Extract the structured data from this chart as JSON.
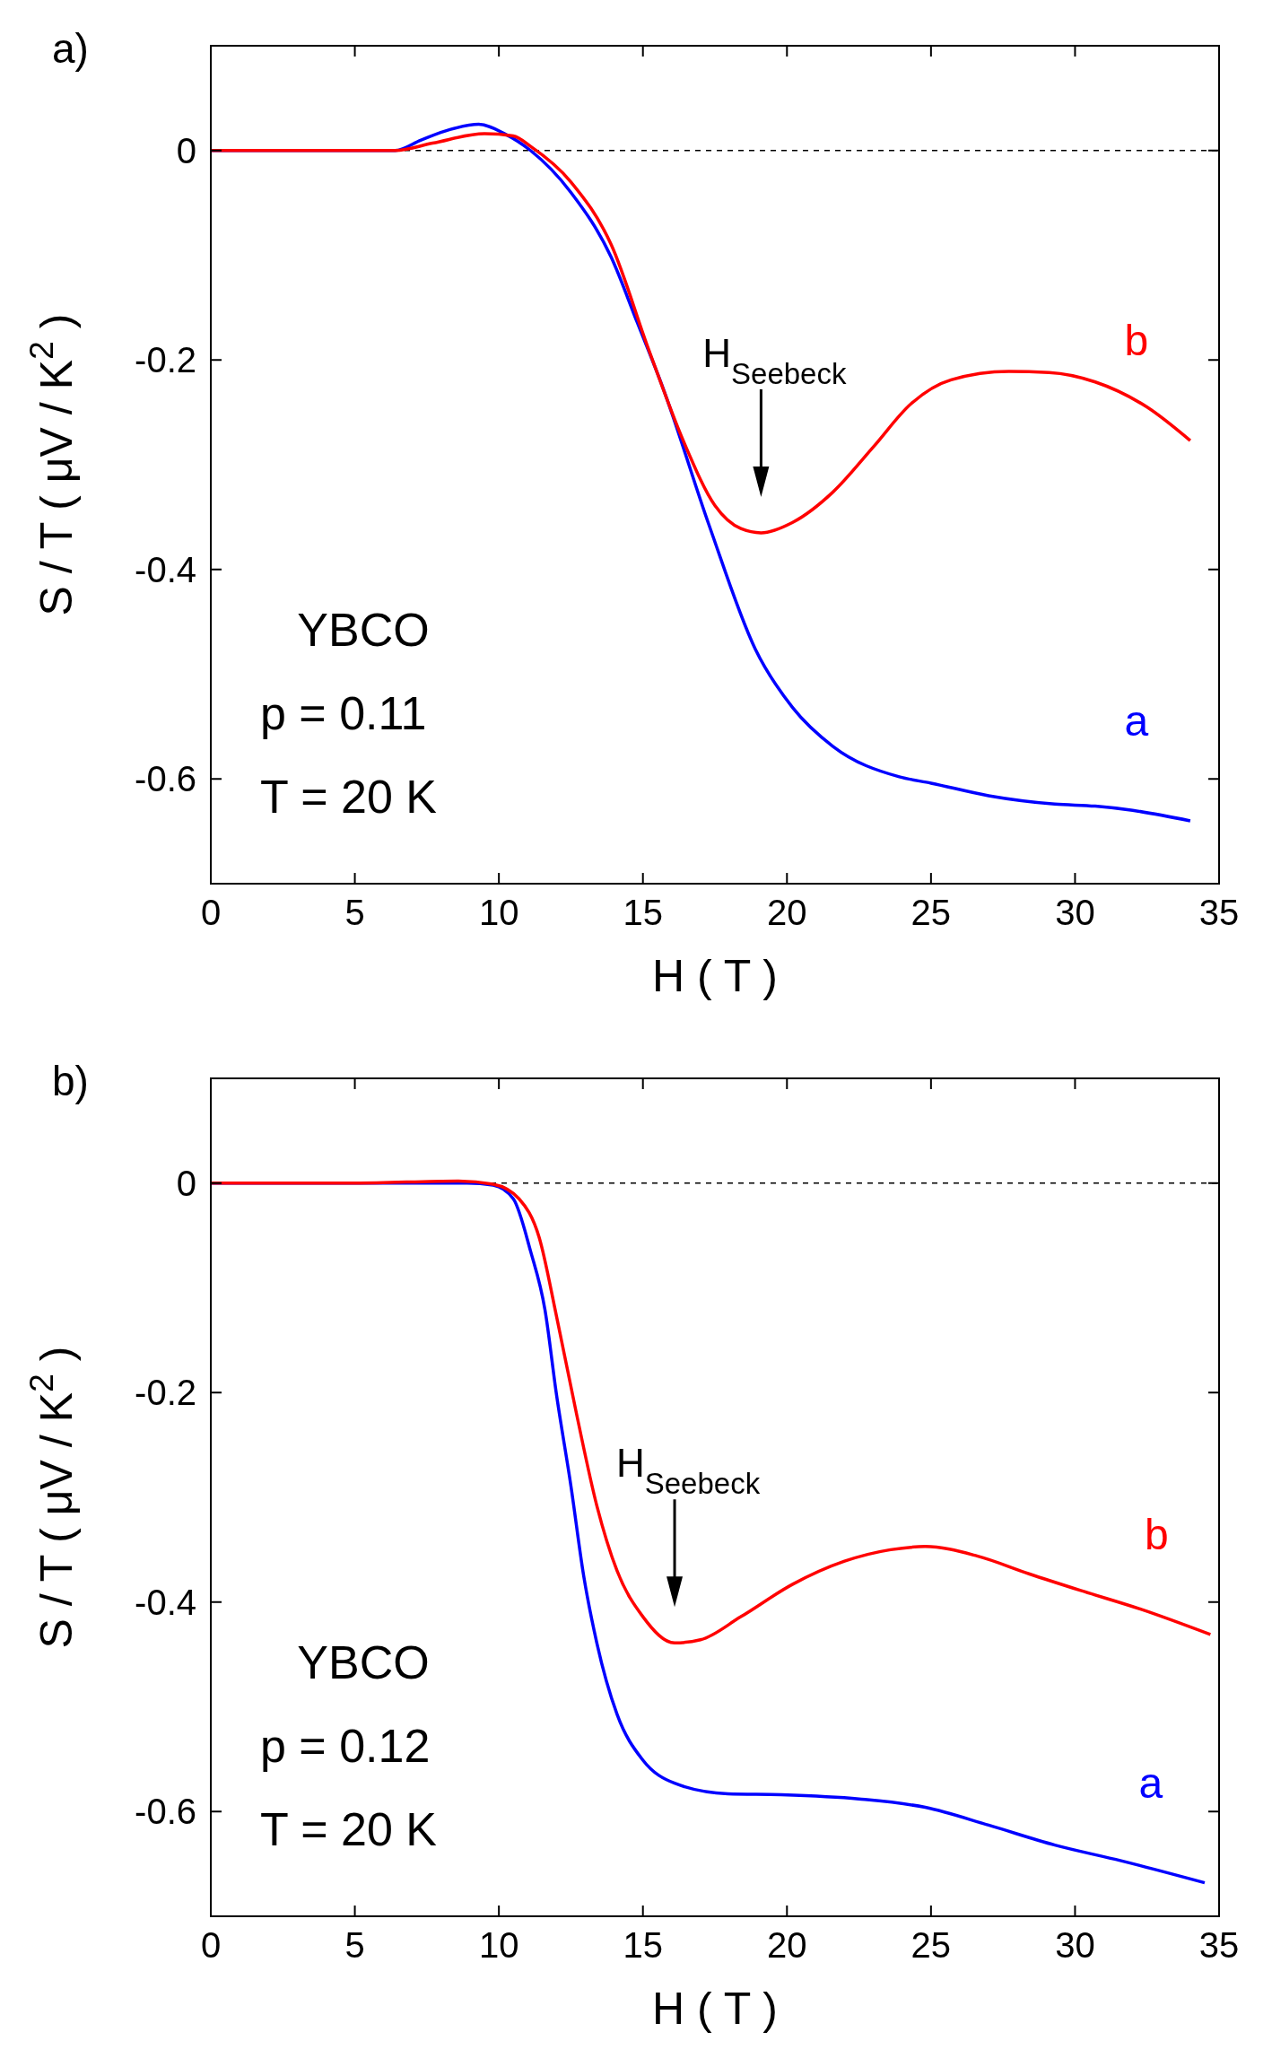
{
  "chart_data": [
    {
      "type": "line",
      "title": "a)",
      "xlabel": "H ( T )",
      "ylabel": "S / T ( μV / K$^{2}$ )",
      "xlim": [
        0,
        35
      ],
      "ylim": [
        -0.7,
        0.1
      ],
      "xticks": [
        0,
        5,
        10,
        15,
        20,
        25,
        30,
        35
      ],
      "yticks": [
        {
          "value": 0,
          "label": "0"
        },
        {
          "value": -0.2,
          "label": "-0.2"
        },
        {
          "value": -0.4,
          "label": "-0.4"
        },
        {
          "value": -0.6,
          "label": "-0.6"
        }
      ],
      "grid": false,
      "marker": "none",
      "line_style": "solid",
      "ref_lines": [
        {
          "axis": "y",
          "value": 0,
          "line_style": "dashed",
          "color": "#000000"
        }
      ],
      "annotations": [
        "H$_{Seebeck}$",
        "YBCO",
        "p = 0.11",
        "T = 20 K"
      ],
      "series": [
        {
          "name": "a",
          "color": "#0000ff",
          "x": [
            0,
            5,
            6.4,
            7.3,
            8.3,
            9.3,
            10.2,
            11.1,
            12.5,
            13.9,
            14.8,
            15.7,
            17.3,
            18.9,
            20.2,
            21.6,
            23.9,
            25,
            27,
            29.3,
            30.7,
            32,
            34
          ],
          "values": [
            0,
            0,
            0,
            0.01,
            0.02,
            0.025,
            0.016,
            0,
            -0.04,
            -0.102,
            -0.164,
            -0.227,
            -0.358,
            -0.476,
            -0.532,
            -0.569,
            -0.598,
            -0.604,
            -0.616,
            -0.624,
            -0.626,
            -0.63,
            -0.64
          ]
        },
        {
          "name": "b",
          "color": "#ff0000",
          "x": [
            0,
            5,
            6.4,
            7.7,
            9.5,
            10.5,
            11.1,
            12.5,
            13.9,
            15.2,
            16.4,
            17.5,
            18.4,
            19.1,
            20.2,
            21.6,
            23,
            24.3,
            25.7,
            27.7,
            29.1,
            30.7,
            32.5,
            34
          ],
          "values": [
            0,
            0,
            0,
            0.007,
            0.016,
            0.014,
            0.004,
            -0.03,
            -0.09,
            -0.19,
            -0.277,
            -0.339,
            -0.361,
            -0.365,
            -0.355,
            -0.326,
            -0.283,
            -0.242,
            -0.219,
            -0.211,
            -0.212,
            -0.221,
            -0.245,
            -0.277
          ]
        }
      ]
    },
    {
      "type": "line",
      "title": "b)",
      "xlabel": "H ( T )",
      "ylabel": "S / T ( μV / K$^{2}$ )",
      "xlim": [
        0,
        35
      ],
      "ylim": [
        -0.7,
        0.1
      ],
      "xticks": [
        0,
        5,
        10,
        15,
        20,
        25,
        30,
        35
      ],
      "yticks": [
        {
          "value": 0,
          "label": "0"
        },
        {
          "value": -0.2,
          "label": "-0.2"
        },
        {
          "value": -0.4,
          "label": "-0.4"
        },
        {
          "value": -0.6,
          "label": "-0.6"
        }
      ],
      "grid": false,
      "marker": "none",
      "line_style": "solid",
      "ref_lines": [
        {
          "axis": "y",
          "value": 0,
          "line_style": "dashed",
          "color": "#000000"
        }
      ],
      "annotations": [
        "H$_{Seebeck}$",
        "YBCO",
        "p = 0.12",
        "T = 20 K"
      ],
      "series": [
        {
          "name": "a",
          "color": "#0000ff",
          "x": [
            0,
            5,
            8.9,
            9.8,
            10.5,
            11.1,
            11.6,
            12,
            12.5,
            12.95,
            13.4,
            14.1,
            15,
            16.1,
            17.95,
            19.8,
            22.5,
            24.8,
            27,
            29.3,
            31.6,
            34.5
          ],
          "values": [
            0,
            0,
            0,
            -0.002,
            -0.015,
            -0.065,
            -0.121,
            -0.202,
            -0.289,
            -0.376,
            -0.439,
            -0.507,
            -0.551,
            -0.573,
            -0.583,
            -0.584,
            -0.588,
            -0.596,
            -0.613,
            -0.632,
            -0.647,
            -0.668
          ]
        },
        {
          "name": "b",
          "color": "#ff0000",
          "x": [
            0,
            5,
            8.6,
            9.8,
            10.7,
            11.4,
            12,
            12.7,
            13.4,
            14.1,
            15,
            16.1,
            17,
            18.4,
            20.2,
            22,
            23.6,
            24.8,
            26.6,
            28.4,
            30.2,
            32.3,
            34.7
          ],
          "values": [
            0,
            0,
            0.002,
            -0.001,
            -0.015,
            -0.052,
            -0.127,
            -0.221,
            -0.308,
            -0.37,
            -0.414,
            -0.439,
            -0.436,
            -0.414,
            -0.383,
            -0.361,
            -0.35,
            -0.347,
            -0.356,
            -0.373,
            -0.389,
            -0.407,
            -0.431
          ]
        }
      ]
    }
  ]
}
